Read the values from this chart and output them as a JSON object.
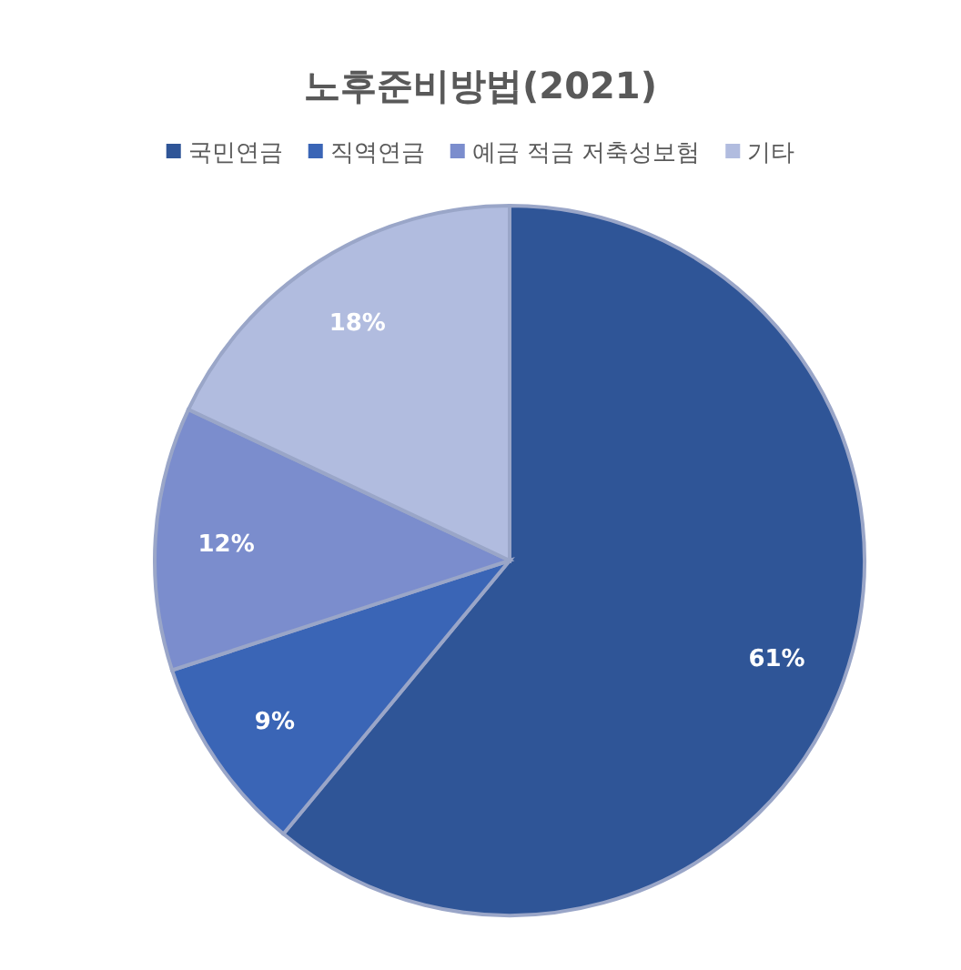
{
  "chart_data": {
    "type": "pie",
    "title": "노후준비방법(2021)",
    "categories": [
      "국민연금",
      "직역연금",
      "예금 적금 저축성보험",
      "기타"
    ],
    "values": [
      61,
      9,
      12,
      18
    ],
    "colors": [
      "#2f5597",
      "#3a65b6",
      "#7b8dcd",
      "#b1bcdf"
    ],
    "value_labels": [
      "61%",
      "9%",
      "12%",
      "18%"
    ],
    "legend": "top"
  }
}
